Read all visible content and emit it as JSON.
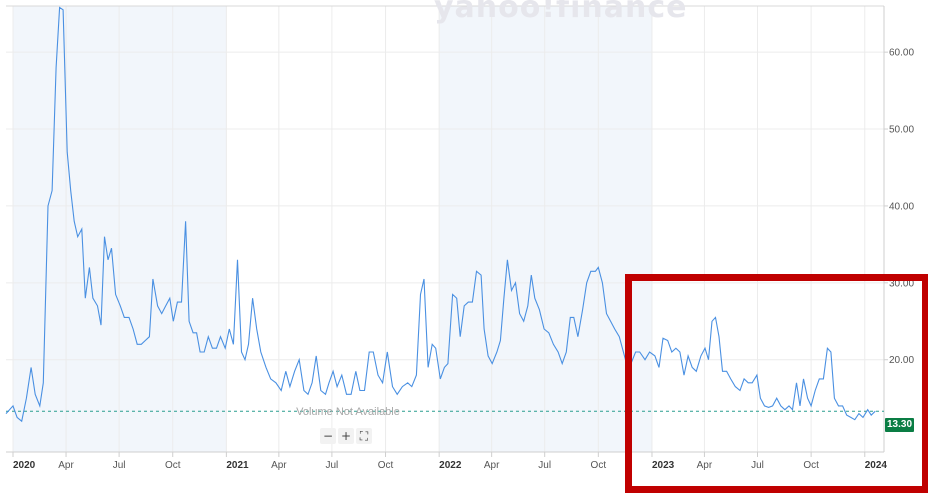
{
  "watermark": "yahoo!finance",
  "volume_note": "Volume Not Available",
  "zoom": {
    "minus": "−",
    "plus": "+",
    "fit": "⛶"
  },
  "current_price_label": "13.30",
  "colors": {
    "line": "#4a90e2",
    "price_tag": "#0a7d44",
    "highlight": "#c00000",
    "year_band": "#f2f6fb"
  },
  "chart_data": {
    "type": "line",
    "title": "",
    "xlabel": "",
    "ylabel": "",
    "ylim": [
      8,
      66
    ],
    "y_ticks": [
      "20.00",
      "30.00",
      "40.00",
      "50.00",
      "60.00"
    ],
    "x_ticks": [
      {
        "label": "2020",
        "date": "2020-01-01",
        "year": true
      },
      {
        "label": "Apr",
        "date": "2020-04-01"
      },
      {
        "label": "Jul",
        "date": "2020-07-01"
      },
      {
        "label": "Oct",
        "date": "2020-10-01"
      },
      {
        "label": "2021",
        "date": "2021-01-01",
        "year": true
      },
      {
        "label": "Apr",
        "date": "2021-04-01"
      },
      {
        "label": "Jul",
        "date": "2021-07-01"
      },
      {
        "label": "Oct",
        "date": "2021-10-01"
      },
      {
        "label": "2022",
        "date": "2022-01-01",
        "year": true
      },
      {
        "label": "Apr",
        "date": "2022-04-01"
      },
      {
        "label": "Jul",
        "date": "2022-07-01"
      },
      {
        "label": "Oct",
        "date": "2022-10-01"
      },
      {
        "label": "2023",
        "date": "2023-01-01",
        "year": true
      },
      {
        "label": "Apr",
        "date": "2023-04-01"
      },
      {
        "label": "Jul",
        "date": "2023-07-01"
      },
      {
        "label": "Oct",
        "date": "2023-10-01"
      },
      {
        "label": "2024",
        "date": "2024-01-01",
        "year": true
      }
    ],
    "grid": true,
    "reference_line": 13.3,
    "series": [
      {
        "points": [
          [
            "2019-12-20",
            13.0
          ],
          [
            "2020-01-01",
            14.0
          ],
          [
            "2020-01-08",
            12.5
          ],
          [
            "2020-01-16",
            12.0
          ],
          [
            "2020-01-24",
            15.0
          ],
          [
            "2020-02-01",
            19.0
          ],
          [
            "2020-02-08",
            15.5
          ],
          [
            "2020-02-16",
            14.0
          ],
          [
            "2020-02-22",
            17.0
          ],
          [
            "2020-03-01",
            40.0
          ],
          [
            "2020-03-08",
            42.0
          ],
          [
            "2020-03-15",
            58.0
          ],
          [
            "2020-03-21",
            65.8
          ],
          [
            "2020-03-27",
            65.5
          ],
          [
            "2020-04-03",
            47.0
          ],
          [
            "2020-04-09",
            42.0
          ],
          [
            "2020-04-15",
            38.0
          ],
          [
            "2020-04-21",
            36.0
          ],
          [
            "2020-04-28",
            37.0
          ],
          [
            "2020-05-04",
            28.0
          ],
          [
            "2020-05-11",
            32.0
          ],
          [
            "2020-05-17",
            28.0
          ],
          [
            "2020-05-25",
            27.0
          ],
          [
            "2020-05-31",
            24.5
          ],
          [
            "2020-06-06",
            36.0
          ],
          [
            "2020-06-12",
            33.0
          ],
          [
            "2020-06-18",
            34.5
          ],
          [
            "2020-06-25",
            28.5
          ],
          [
            "2020-07-03",
            27.0
          ],
          [
            "2020-07-10",
            25.5
          ],
          [
            "2020-07-18",
            25.5
          ],
          [
            "2020-07-25",
            24.0
          ],
          [
            "2020-08-01",
            22.0
          ],
          [
            "2020-08-08",
            22.0
          ],
          [
            "2020-08-15",
            22.5
          ],
          [
            "2020-08-22",
            23.0
          ],
          [
            "2020-08-28",
            30.5
          ],
          [
            "2020-09-05",
            27.0
          ],
          [
            "2020-09-12",
            26.0
          ],
          [
            "2020-09-19",
            27.0
          ],
          [
            "2020-09-26",
            28.0
          ],
          [
            "2020-10-02",
            25.0
          ],
          [
            "2020-10-09",
            27.5
          ],
          [
            "2020-10-16",
            27.5
          ],
          [
            "2020-10-23",
            38.0
          ],
          [
            "2020-10-29",
            25.0
          ],
          [
            "2020-11-05",
            23.5
          ],
          [
            "2020-11-11",
            23.5
          ],
          [
            "2020-11-17",
            21.0
          ],
          [
            "2020-11-24",
            21.0
          ],
          [
            "2020-12-01",
            23.0
          ],
          [
            "2020-12-08",
            21.5
          ],
          [
            "2020-12-15",
            21.5
          ],
          [
            "2020-12-22",
            23.0
          ],
          [
            "2020-12-30",
            21.5
          ],
          [
            "2021-01-06",
            24.0
          ],
          [
            "2021-01-13",
            22.0
          ],
          [
            "2021-01-20",
            33.0
          ],
          [
            "2021-01-27",
            21.0
          ],
          [
            "2021-02-02",
            20.0
          ],
          [
            "2021-02-08",
            22.0
          ],
          [
            "2021-02-15",
            28.0
          ],
          [
            "2021-02-22",
            24.0
          ],
          [
            "2021-03-01",
            21.0
          ],
          [
            "2021-03-10",
            19.0
          ],
          [
            "2021-03-18",
            17.5
          ],
          [
            "2021-03-27",
            17.0
          ],
          [
            "2021-04-05",
            16.0
          ],
          [
            "2021-04-13",
            18.5
          ],
          [
            "2021-04-20",
            16.5
          ],
          [
            "2021-04-28",
            18.5
          ],
          [
            "2021-05-06",
            20.0
          ],
          [
            "2021-05-14",
            16.0
          ],
          [
            "2021-05-21",
            15.5
          ],
          [
            "2021-05-28",
            17.0
          ],
          [
            "2021-06-04",
            20.5
          ],
          [
            "2021-06-12",
            16.0
          ],
          [
            "2021-06-20",
            15.5
          ],
          [
            "2021-06-26",
            17.0
          ],
          [
            "2021-07-03",
            18.5
          ],
          [
            "2021-07-10",
            16.5
          ],
          [
            "2021-07-18",
            18.0
          ],
          [
            "2021-07-26",
            15.5
          ],
          [
            "2021-08-03",
            15.5
          ],
          [
            "2021-08-11",
            18.5
          ],
          [
            "2021-08-18",
            16.0
          ],
          [
            "2021-08-26",
            16.0
          ],
          [
            "2021-09-03",
            21.0
          ],
          [
            "2021-09-10",
            21.0
          ],
          [
            "2021-09-18",
            18.0
          ],
          [
            "2021-09-26",
            17.0
          ],
          [
            "2021-10-04",
            21.0
          ],
          [
            "2021-10-13",
            16.5
          ],
          [
            "2021-10-21",
            15.5
          ],
          [
            "2021-10-30",
            16.5
          ],
          [
            "2021-11-08",
            17.0
          ],
          [
            "2021-11-15",
            16.5
          ],
          [
            "2021-11-23",
            18.0
          ],
          [
            "2021-11-30",
            28.5
          ],
          [
            "2021-12-06",
            30.5
          ],
          [
            "2021-12-13",
            19.0
          ],
          [
            "2021-12-20",
            22.0
          ],
          [
            "2021-12-26",
            21.5
          ],
          [
            "2022-01-03",
            17.5
          ],
          [
            "2022-01-10",
            19.0
          ],
          [
            "2022-01-16",
            19.5
          ],
          [
            "2022-01-24",
            28.5
          ],
          [
            "2022-01-31",
            28.0
          ],
          [
            "2022-02-06",
            23.0
          ],
          [
            "2022-02-13",
            27.0
          ],
          [
            "2022-02-20",
            27.5
          ],
          [
            "2022-02-27",
            27.5
          ],
          [
            "2022-03-06",
            31.5
          ],
          [
            "2022-03-14",
            31.0
          ],
          [
            "2022-03-19",
            24.0
          ],
          [
            "2022-03-26",
            20.5
          ],
          [
            "2022-04-02",
            19.5
          ],
          [
            "2022-04-10",
            21.0
          ],
          [
            "2022-04-16",
            22.5
          ],
          [
            "2022-04-22",
            28.0
          ],
          [
            "2022-04-28",
            33.0
          ],
          [
            "2022-05-05",
            29.0
          ],
          [
            "2022-05-12",
            30.0
          ],
          [
            "2022-05-19",
            26.0
          ],
          [
            "2022-05-26",
            25.0
          ],
          [
            "2022-06-02",
            27.0
          ],
          [
            "2022-06-08",
            31.0
          ],
          [
            "2022-06-14",
            28.0
          ],
          [
            "2022-06-22",
            26.5
          ],
          [
            "2022-06-30",
            24.0
          ],
          [
            "2022-07-08",
            23.5
          ],
          [
            "2022-07-16",
            22.0
          ],
          [
            "2022-07-24",
            21.0
          ],
          [
            "2022-07-31",
            19.5
          ],
          [
            "2022-08-07",
            21.0
          ],
          [
            "2022-08-14",
            25.5
          ],
          [
            "2022-08-20",
            25.5
          ],
          [
            "2022-08-27",
            23.0
          ],
          [
            "2022-09-04",
            26.5
          ],
          [
            "2022-09-11",
            30.0
          ],
          [
            "2022-09-18",
            31.5
          ],
          [
            "2022-09-26",
            31.5
          ],
          [
            "2022-10-01",
            32.0
          ],
          [
            "2022-10-08",
            30.0
          ],
          [
            "2022-10-15",
            26.0
          ],
          [
            "2022-10-22",
            25.0
          ],
          [
            "2022-10-29",
            24.0
          ],
          [
            "2022-11-06",
            23.0
          ],
          [
            "2022-11-13",
            21.0
          ],
          [
            "2022-11-20",
            19.0
          ],
          [
            "2022-11-26",
            19.5
          ],
          [
            "2022-12-04",
            21.0
          ],
          [
            "2022-12-11",
            21.0
          ],
          [
            "2022-12-20",
            20.0
          ],
          [
            "2022-12-28",
            21.0
          ],
          [
            "2023-01-06",
            20.5
          ],
          [
            "2023-01-13",
            19.0
          ],
          [
            "2023-01-20",
            22.8
          ],
          [
            "2023-01-28",
            22.5
          ],
          [
            "2023-02-04",
            21.0
          ],
          [
            "2023-02-11",
            21.5
          ],
          [
            "2023-02-18",
            21.0
          ],
          [
            "2023-02-25",
            18.0
          ],
          [
            "2023-03-04",
            20.5
          ],
          [
            "2023-03-11",
            19.0
          ],
          [
            "2023-03-18",
            18.5
          ],
          [
            "2023-03-26",
            20.5
          ],
          [
            "2023-04-02",
            21.5
          ],
          [
            "2023-04-08",
            20.0
          ],
          [
            "2023-04-14",
            25.0
          ],
          [
            "2023-04-20",
            25.5
          ],
          [
            "2023-04-26",
            23.0
          ],
          [
            "2023-05-02",
            18.5
          ],
          [
            "2023-05-09",
            18.5
          ],
          [
            "2023-05-16",
            17.5
          ],
          [
            "2023-05-24",
            16.5
          ],
          [
            "2023-06-01",
            16.0
          ],
          [
            "2023-06-08",
            17.5
          ],
          [
            "2023-06-15",
            17.0
          ],
          [
            "2023-06-22",
            17.0
          ],
          [
            "2023-06-30",
            18.0
          ],
          [
            "2023-07-06",
            15.0
          ],
          [
            "2023-07-13",
            14.0
          ],
          [
            "2023-07-20",
            13.8
          ],
          [
            "2023-07-27",
            14.0
          ],
          [
            "2023-08-03",
            15.0
          ],
          [
            "2023-08-10",
            14.0
          ],
          [
            "2023-08-17",
            13.5
          ],
          [
            "2023-08-24",
            14.0
          ],
          [
            "2023-08-30",
            13.5
          ],
          [
            "2023-09-06",
            17.0
          ],
          [
            "2023-09-12",
            14.0
          ],
          [
            "2023-09-18",
            17.5
          ],
          [
            "2023-09-25",
            15.0
          ],
          [
            "2023-10-01",
            14.0
          ],
          [
            "2023-10-08",
            16.0
          ],
          [
            "2023-10-15",
            17.5
          ],
          [
            "2023-10-22",
            17.5
          ],
          [
            "2023-10-29",
            21.5
          ],
          [
            "2023-11-04",
            21.0
          ],
          [
            "2023-11-10",
            15.0
          ],
          [
            "2023-11-17",
            14.0
          ],
          [
            "2023-11-24",
            14.0
          ],
          [
            "2023-12-01",
            12.8
          ],
          [
            "2023-12-08",
            12.5
          ],
          [
            "2023-12-15",
            12.2
          ],
          [
            "2023-12-22",
            13.0
          ],
          [
            "2023-12-29",
            12.5
          ],
          [
            "2024-01-06",
            13.5
          ],
          [
            "2024-01-12",
            12.8
          ],
          [
            "2024-01-19",
            13.3
          ]
        ]
      }
    ]
  }
}
